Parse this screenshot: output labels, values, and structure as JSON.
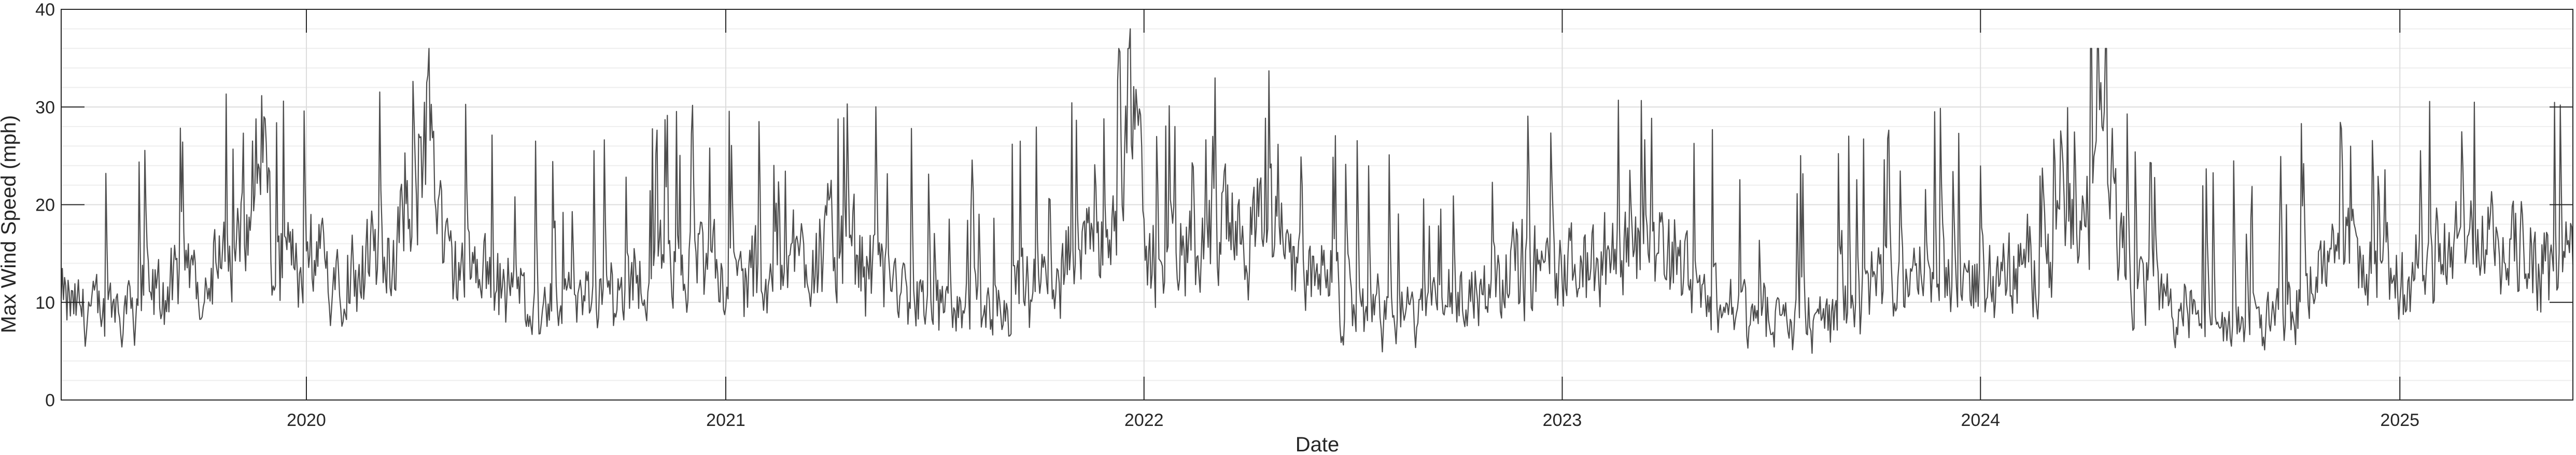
{
  "chart_data": {
    "type": "line",
    "title": "",
    "xlabel": "Date",
    "ylabel": "Max Wind Speed (mph)",
    "ylim": [
      0,
      40
    ],
    "xlim": [
      "2019-06-01",
      "2025-06-01"
    ],
    "yticks": [
      0,
      10,
      20,
      30,
      40
    ],
    "xticks": [
      "2020-01-01",
      "2021-01-01",
      "2022-01-01",
      "2023-01-01",
      "2024-01-01",
      "2025-01-01"
    ],
    "xtick_labels": [
      "2020",
      "2021",
      "2022",
      "2023",
      "2024",
      "2025"
    ],
    "grid": true,
    "minor_grid": true,
    "line_color": "#4d4d4d",
    "frequency": "daily",
    "series": [
      {
        "x": [
          "2019-06-01",
          "2019-07-01",
          "2019-08-01",
          "2019-09-01",
          "2019-10-01",
          "2019-11-01",
          "2019-11-25",
          "2019-12-01",
          "2020-01-01",
          "2020-02-01",
          "2020-03-01",
          "2020-04-01",
          "2020-04-15",
          "2020-05-01",
          "2020-06-01",
          "2020-07-01",
          "2020-08-01",
          "2020-09-01",
          "2020-10-01",
          "2020-11-01",
          "2020-12-01",
          "2021-01-01",
          "2021-02-01",
          "2021-03-01",
          "2021-04-01",
          "2021-05-01",
          "2021-06-01",
          "2021-07-01",
          "2021-08-01",
          "2021-09-01",
          "2021-10-01",
          "2021-11-01",
          "2021-12-01",
          "2021-12-20",
          "2022-01-01",
          "2022-02-01",
          "2022-03-01",
          "2022-04-01",
          "2022-05-01",
          "2022-06-01",
          "2022-07-01",
          "2022-08-01",
          "2022-09-01",
          "2022-10-01",
          "2022-11-01",
          "2022-12-01",
          "2023-01-01",
          "2023-02-01",
          "2023-03-01",
          "2023-04-01",
          "2023-05-01",
          "2023-06-01",
          "2023-07-01",
          "2023-08-01",
          "2023-09-01",
          "2023-10-01",
          "2023-11-01",
          "2023-12-01",
          "2024-01-01",
          "2024-02-01",
          "2024-03-01",
          "2024-04-01",
          "2024-04-15",
          "2024-05-01",
          "2024-06-01",
          "2024-07-01",
          "2024-08-01",
          "2024-09-01",
          "2024-10-01",
          "2024-11-01",
          "2024-12-01",
          "2025-01-01",
          "2025-02-01",
          "2025-03-01",
          "2025-04-01",
          "2025-05-01",
          "2025-06-01"
        ],
        "y": [
          10,
          9,
          10,
          11,
          13,
          14,
          29,
          13,
          14,
          13,
          15,
          16,
          32.5,
          14,
          12,
          11,
          9,
          10,
          11,
          13,
          14,
          12,
          13,
          15,
          16,
          14,
          11,
          9,
          8,
          9,
          11,
          14,
          15,
          38,
          14,
          15,
          17,
          18,
          16,
          12,
          10,
          9,
          9,
          10,
          13,
          14,
          13,
          14,
          15,
          16,
          12,
          9,
          8,
          8,
          9,
          11,
          12,
          13,
          12,
          13,
          15,
          17,
          32.5,
          15,
          11,
          9,
          7,
          8,
          10,
          14,
          14,
          13,
          14,
          16,
          17,
          15,
          13
        ],
        "min": 1.5,
        "max": 38
      }
    ]
  }
}
